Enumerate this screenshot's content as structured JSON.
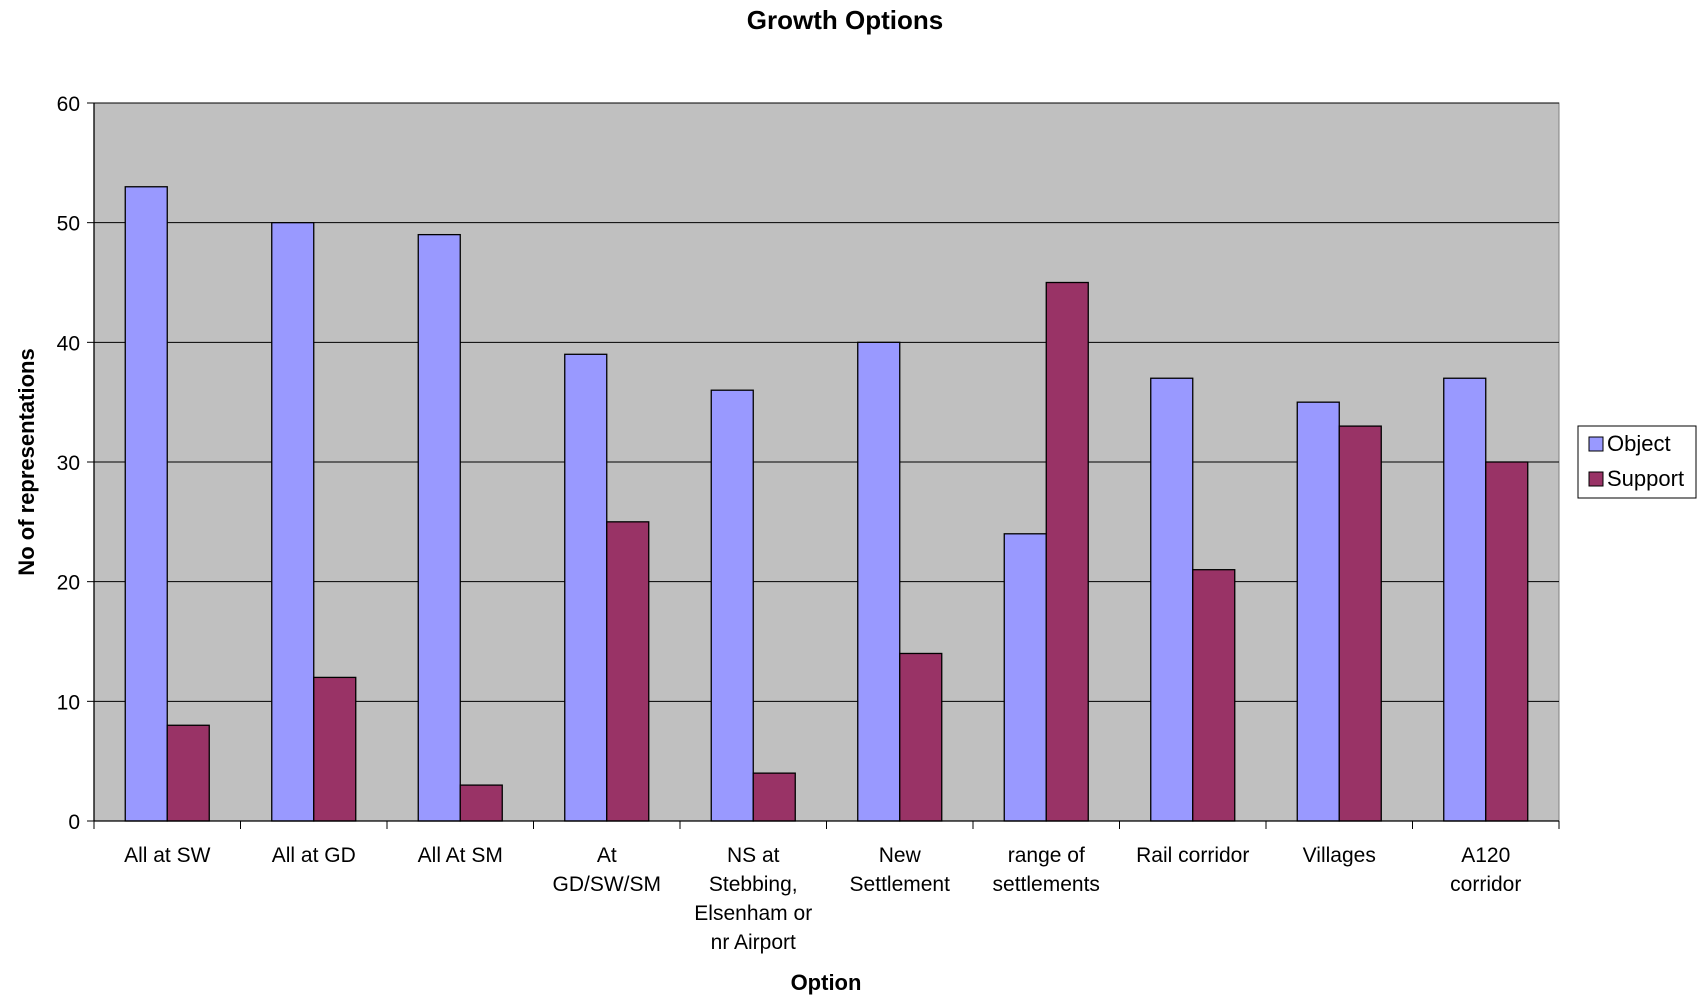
{
  "chart_data": {
    "type": "bar",
    "title": "Growth Options",
    "xlabel": "Option",
    "ylabel": "No of representations",
    "ylim": [
      0,
      60
    ],
    "yticks": [
      0,
      10,
      20,
      30,
      40,
      50,
      60
    ],
    "grid": true,
    "legend_position": "right",
    "categories": [
      [
        "All at SW"
      ],
      [
        "All at GD"
      ],
      [
        "All At SM"
      ],
      [
        "At",
        "GD/SW/SM"
      ],
      [
        "NS at",
        "Stebbing,",
        "Elsenham or",
        "nr Airport"
      ],
      [
        "New",
        "Settlement"
      ],
      [
        "range of",
        "settlements"
      ],
      [
        "Rail corridor"
      ],
      [
        "Villages"
      ],
      [
        "A120",
        "corridor"
      ]
    ],
    "series": [
      {
        "name": "Object",
        "color": "#9999ff",
        "values": [
          53,
          50,
          49,
          39,
          36,
          40,
          24,
          37,
          35,
          37
        ]
      },
      {
        "name": "Support",
        "color": "#993366",
        "values": [
          8,
          12,
          3,
          25,
          4,
          14,
          45,
          21,
          33,
          30
        ]
      }
    ],
    "plot_background": "#c0c0c0"
  }
}
